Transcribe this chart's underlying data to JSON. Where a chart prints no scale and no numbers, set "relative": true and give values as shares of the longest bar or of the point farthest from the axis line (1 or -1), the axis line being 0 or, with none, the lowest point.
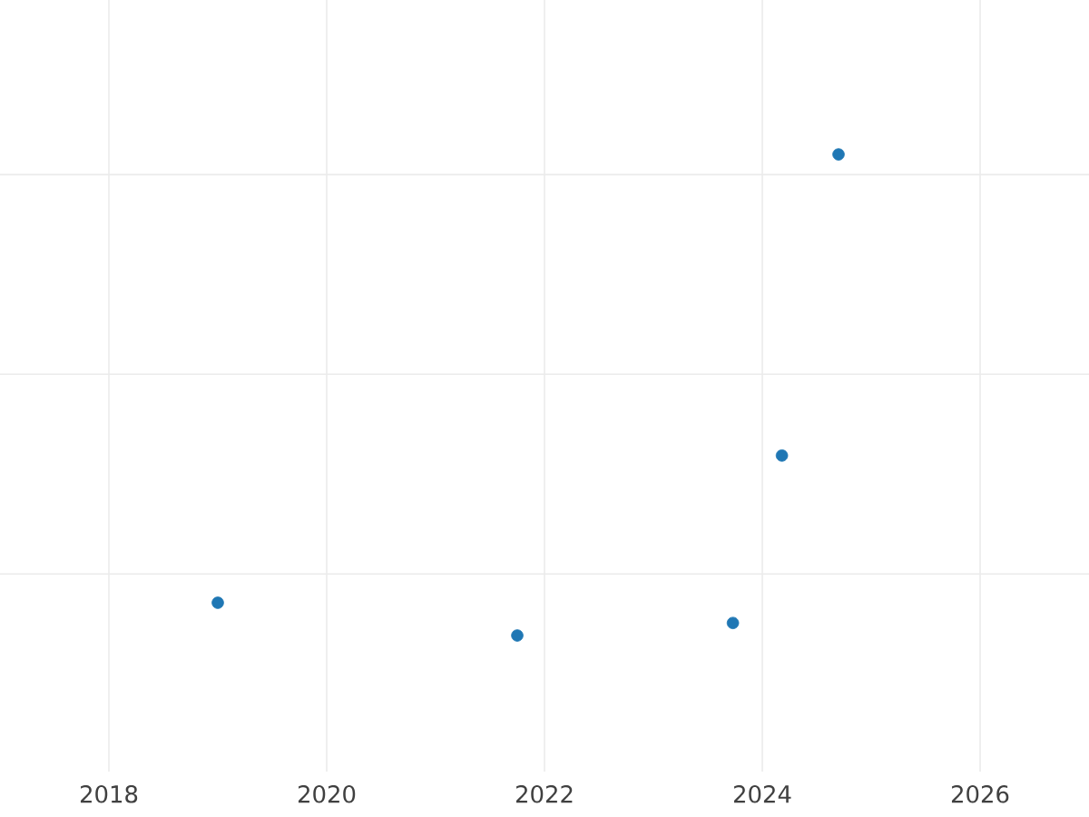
{
  "chart_data": {
    "type": "scatter",
    "relative": true,
    "x": [
      2019.0,
      2021.75,
      2023.73,
      2024.18,
      2024.7
    ],
    "values": [
      0.068,
      0,
      0.026,
      0.374,
      1
    ],
    "color": "#1f77b4",
    "marker": "circle",
    "xlim": [
      2017,
      2027
    ],
    "xticks": [
      2018,
      2020,
      2022,
      2024,
      2026
    ],
    "grid": true,
    "tick_labels": "x"
  }
}
